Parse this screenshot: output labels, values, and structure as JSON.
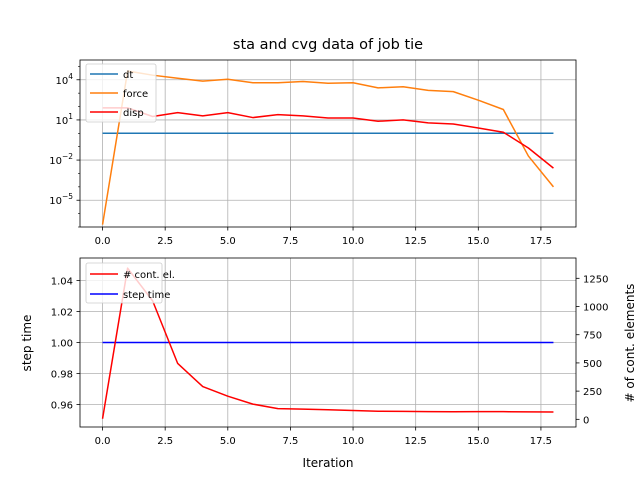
{
  "chart_data": [
    {
      "type": "line",
      "title": "sta and cvg data of job tie",
      "xlabel": "",
      "ylabel": "",
      "xlim": [
        -0.9,
        18.9
      ],
      "ylim": [
        1e-07,
        300000.0
      ],
      "yscale": "log",
      "grid": true,
      "legend_position": "upper-left",
      "x_ticks": [
        0.0,
        2.5,
        5.0,
        7.5,
        10.0,
        12.5,
        15.0,
        17.5
      ],
      "x_tick_labels": [
        "0.0",
        "2.5",
        "5.0",
        "7.5",
        "10.0",
        "12.5",
        "15.0",
        "17.5"
      ],
      "y_ticks": [
        1e-05,
        0.01,
        10,
        10000.0
      ],
      "y_tick_labels": [
        {
          "base": "10",
          "exp": "−5"
        },
        {
          "base": "10",
          "exp": "−2"
        },
        {
          "base": "10",
          "exp": "1"
        },
        {
          "base": "10",
          "exp": "4"
        }
      ],
      "x": [
        0,
        1,
        2,
        3,
        4,
        5,
        6,
        7,
        8,
        9,
        10,
        11,
        12,
        13,
        14,
        15,
        16,
        17,
        18
      ],
      "series": [
        {
          "name": "dt",
          "color": "#1f77b4",
          "values": [
            1,
            1,
            1,
            1,
            1,
            1,
            1,
            1,
            1,
            1,
            1,
            1,
            1,
            1,
            1,
            1,
            1,
            1,
            1
          ]
        },
        {
          "name": "force",
          "color": "#ff7f0e",
          "values": [
            1.5e-07,
            45000,
            22000,
            13000,
            8000,
            11000,
            6000,
            6000,
            7500,
            5500,
            6000,
            2500,
            3000,
            1600,
            1300,
            300,
            60,
            0.02,
            0.0001
          ]
        },
        {
          "name": "disp",
          "color": "#ff0000",
          "values": [
            80,
            80,
            18,
            35,
            20,
            35,
            15,
            25,
            20,
            14,
            14,
            8,
            10,
            6,
            5,
            2.5,
            1.2,
            0.08,
            0.0025
          ]
        }
      ]
    },
    {
      "type": "line",
      "title": "",
      "xlabel": "Iteration",
      "ylabel": "step time",
      "ylabel_right": "# of cont. elements",
      "xlim": [
        -0.9,
        18.9
      ],
      "ylim": [
        0.9455,
        1.0545
      ],
      "ylim_right": [
        -68,
        1430
      ],
      "grid": true,
      "legend_position": "upper-left",
      "x_ticks": [
        0.0,
        2.5,
        5.0,
        7.5,
        10.0,
        12.5,
        15.0,
        17.5
      ],
      "x_tick_labels": [
        "0.0",
        "2.5",
        "5.0",
        "7.5",
        "10.0",
        "12.5",
        "15.0",
        "17.5"
      ],
      "y_ticks": [
        0.96,
        0.98,
        1.0,
        1.02,
        1.04
      ],
      "y_tick_labels": [
        "0.96",
        "0.98",
        "1.00",
        "1.02",
        "1.04"
      ],
      "y_ticks_right": [
        0,
        250,
        500,
        750,
        1000,
        1250
      ],
      "y_tick_labels_right": [
        "0",
        "250",
        "500",
        "750",
        "1000",
        "1250"
      ],
      "x": [
        0,
        1,
        2,
        3,
        4,
        5,
        6,
        7,
        8,
        9,
        10,
        11,
        12,
        13,
        14,
        15,
        16,
        17,
        18
      ],
      "series": [
        {
          "name": "# cont. el.",
          "color": "#ff0000",
          "axis": "right",
          "values": [
            5,
            1340,
            1050,
            495,
            290,
            205,
            135,
            95,
            90,
            85,
            78,
            72,
            70,
            68,
            67,
            68,
            68,
            66,
            65
          ]
        },
        {
          "name": "step time",
          "color": "#0000ff",
          "axis": "left",
          "values": [
            1,
            1,
            1,
            1,
            1,
            1,
            1,
            1,
            1,
            1,
            1,
            1,
            1,
            1,
            1,
            1,
            1,
            1,
            1
          ]
        }
      ]
    }
  ]
}
